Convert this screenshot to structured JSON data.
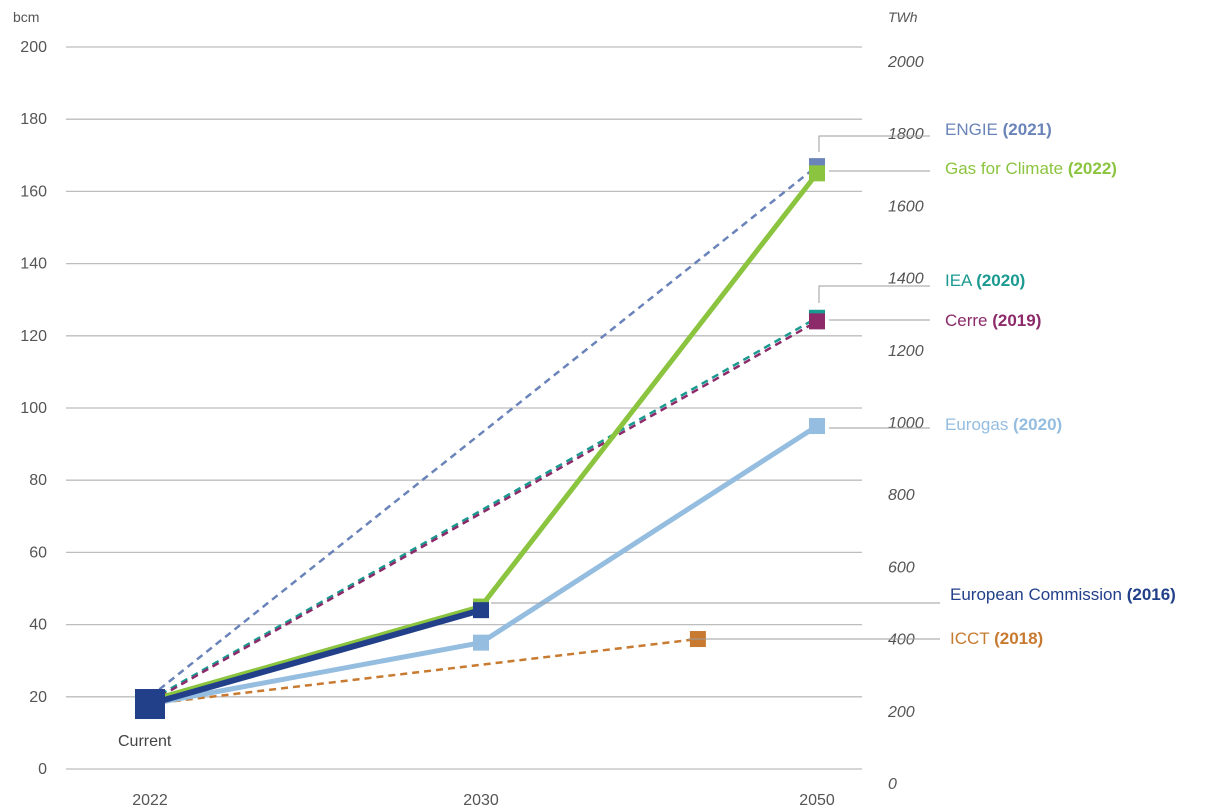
{
  "chart_data": {
    "type": "line",
    "left_unit": "bcm",
    "right_unit": "TWh",
    "x_categories": [
      "2022",
      "2030",
      "2050"
    ],
    "left_ticks": [
      0,
      20,
      40,
      60,
      80,
      100,
      120,
      140,
      160,
      180,
      200
    ],
    "right_ticks": [
      0,
      200,
      400,
      600,
      800,
      1000,
      1200,
      1400,
      1600,
      1800,
      2000
    ],
    "ylim": [
      0,
      200
    ],
    "grid": true,
    "current": {
      "label": "Current",
      "x": "2022",
      "y": 18,
      "color": "#22408a"
    },
    "series": [
      {
        "name": "ENGIE",
        "year": "(2021)",
        "color": "#6a84ba",
        "dashed": true,
        "width": 2.5,
        "points": [
          {
            "x": "2022",
            "y": 20
          },
          {
            "x": "2050",
            "y": 167
          }
        ]
      },
      {
        "name": "Gas for Climate",
        "year": "(2022)",
        "color": "#8bc43f",
        "dashed": false,
        "width": 5,
        "points": [
          {
            "x": "2022",
            "y": 19
          },
          {
            "x": "2030",
            "y": 45
          },
          {
            "x": "2050",
            "y": 165
          }
        ]
      },
      {
        "name": "IEA",
        "year": "(2020)",
        "color": "#1a9a90",
        "dashed": true,
        "width": 2.5,
        "points": [
          {
            "x": "2022",
            "y": 19
          },
          {
            "x": "2050",
            "y": 125
          }
        ]
      },
      {
        "name": "Cerre",
        "year": "(2019)",
        "color": "#8c2a6a",
        "dashed": true,
        "width": 2.5,
        "points": [
          {
            "x": "2022",
            "y": 18.5
          },
          {
            "x": "2050",
            "y": 124
          }
        ]
      },
      {
        "name": "Eurogas",
        "year": "(2020)",
        "color": "#94bde0",
        "dashed": false,
        "width": 5,
        "points": [
          {
            "x": "2022",
            "y": 18
          },
          {
            "x": "2030",
            "y": 35
          },
          {
            "x": "2050",
            "y": 95
          }
        ]
      },
      {
        "name": "European Commission",
        "year": "(2016)",
        "color": "#22408a",
        "dashed": false,
        "width": 6,
        "points": [
          {
            "x": "2022",
            "y": 18
          },
          {
            "x": "2030",
            "y": 44
          }
        ]
      },
      {
        "name": "ICCT",
        "year": "(2018)",
        "color": "#c77a30",
        "dashed": true,
        "width": 2.5,
        "points": [
          {
            "x": "2022",
            "y": 18
          },
          {
            "x": 2045,
            "y": 36
          }
        ]
      }
    ]
  }
}
